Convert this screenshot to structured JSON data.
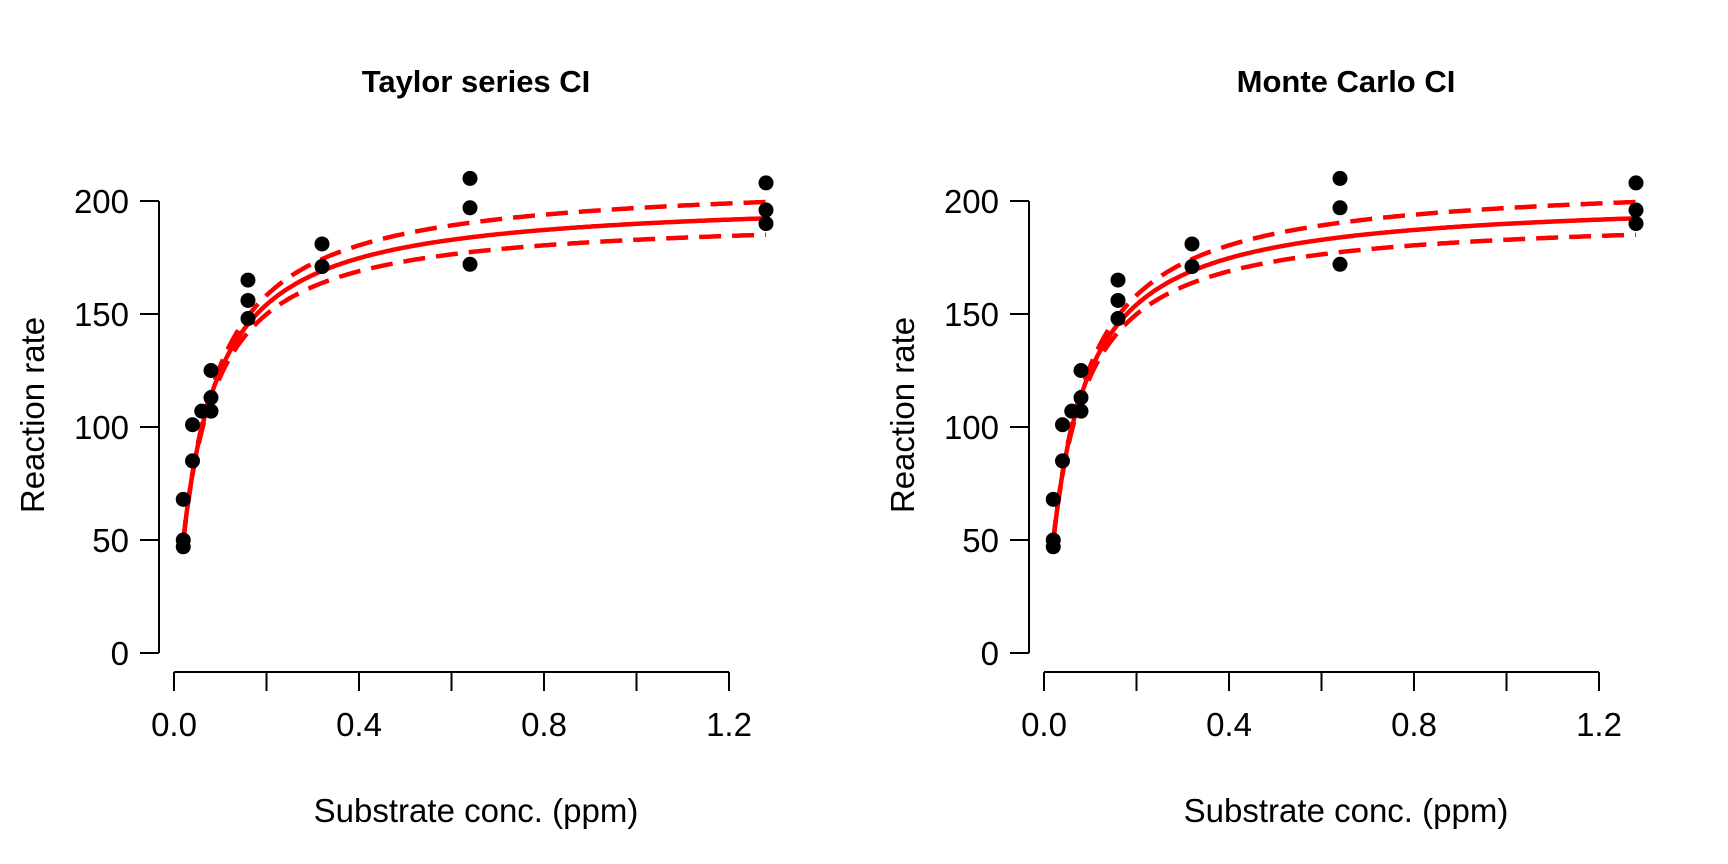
{
  "chart_data": [
    {
      "type": "scatter",
      "title": "Taylor series CI",
      "xlabel": "Substrate conc. (ppm)",
      "ylabel": "Reaction rate",
      "xlim": [
        0.0,
        1.2
      ],
      "ylim": [
        0,
        200
      ],
      "x_ticks": [
        0.0,
        0.2,
        0.4,
        0.6,
        0.8,
        1.0,
        1.2
      ],
      "x_tick_labels": [
        "0.0",
        "",
        "0.4",
        "",
        "0.8",
        "",
        "1.2"
      ],
      "y_ticks": [
        0,
        50,
        100,
        150,
        200
      ],
      "y_tick_labels": [
        "0",
        "50",
        "100",
        "150",
        "200"
      ],
      "grid": false,
      "points": {
        "x": [
          0.02,
          0.02,
          0.02,
          0.04,
          0.04,
          0.06,
          0.08,
          0.08,
          0.08,
          0.16,
          0.16,
          0.16,
          0.32,
          0.32,
          0.64,
          0.64,
          0.64,
          1.28,
          1.28,
          1.28
        ],
        "y": [
          47,
          50,
          68,
          85,
          101,
          107,
          107,
          113,
          125,
          148,
          156,
          165,
          171,
          181,
          172,
          197,
          210,
          190,
          196,
          208
        ],
        "color": "#000000"
      },
      "fit": {
        "Vmax": 201.6,
        "Km": 0.0616,
        "color": "#ff0000",
        "style": "solid"
      },
      "ci": {
        "lower_Vmax": 193.5,
        "lower_Km": 0.0582,
        "upper_Vmax": 209.7,
        "upper_Km": 0.065,
        "color": "#ff0000",
        "style": "dashed"
      }
    },
    {
      "type": "scatter",
      "title": "Monte Carlo CI",
      "xlabel": "Substrate conc. (ppm)",
      "ylabel": "Reaction rate",
      "xlim": [
        0.0,
        1.2
      ],
      "ylim": [
        0,
        200
      ],
      "x_ticks": [
        0.0,
        0.2,
        0.4,
        0.6,
        0.8,
        1.0,
        1.2
      ],
      "x_tick_labels": [
        "0.0",
        "",
        "0.4",
        "",
        "0.8",
        "",
        "1.2"
      ],
      "y_ticks": [
        0,
        50,
        100,
        150,
        200
      ],
      "y_tick_labels": [
        "0",
        "50",
        "100",
        "150",
        "200"
      ],
      "grid": false,
      "points": {
        "x": [
          0.02,
          0.02,
          0.02,
          0.04,
          0.04,
          0.06,
          0.08,
          0.08,
          0.08,
          0.16,
          0.16,
          0.16,
          0.32,
          0.32,
          0.64,
          0.64,
          0.64,
          1.28,
          1.28,
          1.28
        ],
        "y": [
          47,
          50,
          68,
          85,
          101,
          107,
          107,
          113,
          125,
          148,
          156,
          165,
          171,
          181,
          172,
          197,
          210,
          190,
          196,
          208
        ],
        "color": "#000000"
      },
      "fit": {
        "Vmax": 201.6,
        "Km": 0.0616,
        "color": "#ff0000",
        "style": "solid"
      },
      "ci": {
        "lower_Vmax": 193.5,
        "lower_Km": 0.0582,
        "upper_Vmax": 209.7,
        "upper_Km": 0.065,
        "color": "#ff0000",
        "style": "dashed"
      }
    }
  ]
}
